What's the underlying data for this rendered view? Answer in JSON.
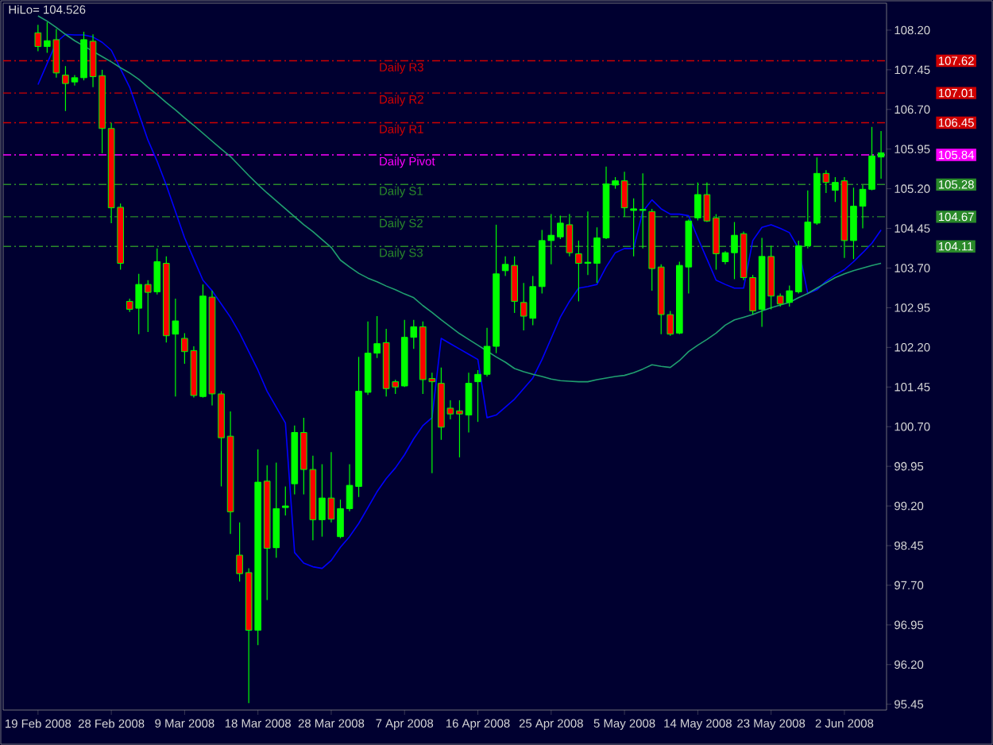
{
  "chart_data": {
    "type": "candlestick",
    "annotations": [
      "HiLo= 104.526",
      "107.62",
      "107.01",
      "106.45",
      "105.84",
      "105.28",
      "104.67",
      "104.11"
    ],
    "categories": [
      "19 Feb 2008",
      null,
      null,
      null,
      null,
      null,
      null,
      null,
      "28 Feb 2008",
      null,
      null,
      null,
      null,
      null,
      null,
      null,
      "9 Mar 2008",
      null,
      null,
      null,
      null,
      null,
      null,
      null,
      "18 Mar 2008",
      null,
      null,
      null,
      null,
      null,
      null,
      null,
      "28 Mar 2008",
      null,
      null,
      null,
      null,
      null,
      null,
      null,
      "7 Apr 2008",
      null,
      null,
      null,
      null,
      null,
      null,
      null,
      "16 Apr 2008",
      null,
      null,
      null,
      null,
      null,
      null,
      null,
      "25 Apr 2008",
      null,
      null,
      null,
      null,
      null,
      null,
      null,
      "5 May 2008",
      null,
      null,
      null,
      null,
      null,
      null,
      null,
      "14 May 2008",
      null,
      null,
      null,
      null,
      null,
      null,
      null,
      "23 May 2008",
      null,
      null,
      null,
      null,
      null,
      null,
      null,
      "2 Jun 2008",
      null,
      null,
      null,
      null
    ],
    "ohlc": [
      [
        108.15,
        108.3,
        107.8,
        107.89
      ],
      [
        107.89,
        108.35,
        107.77,
        108.0
      ],
      [
        108.02,
        108.22,
        107.3,
        107.39
      ],
      [
        107.35,
        107.52,
        106.67,
        107.19
      ],
      [
        107.22,
        107.35,
        107.15,
        107.3
      ],
      [
        107.3,
        108.17,
        107.25,
        108.02
      ],
      [
        107.99,
        108.12,
        107.12,
        107.32
      ],
      [
        107.34,
        107.45,
        105.87,
        106.34
      ],
      [
        106.34,
        106.45,
        104.55,
        104.84
      ],
      [
        104.85,
        104.92,
        103.67,
        103.79
      ],
      [
        103.07,
        103.12,
        102.87,
        102.92
      ],
      [
        102.94,
        103.59,
        102.45,
        103.39
      ],
      [
        103.39,
        103.47,
        102.49,
        103.24
      ],
      [
        103.25,
        104.07,
        103.2,
        103.82
      ],
      [
        103.79,
        103.92,
        102.29,
        102.42
      ],
      [
        102.45,
        103.12,
        101.27,
        102.7
      ],
      [
        102.37,
        102.47,
        101.89,
        102.12
      ],
      [
        102.14,
        102.22,
        101.25,
        101.29
      ],
      [
        101.27,
        103.39,
        101.25,
        103.17
      ],
      [
        103.15,
        103.27,
        101.1,
        101.32
      ],
      [
        101.32,
        101.37,
        99.57,
        100.49
      ],
      [
        100.52,
        100.99,
        98.67,
        99.09
      ],
      [
        98.27,
        98.89,
        97.77,
        97.92
      ],
      [
        97.94,
        98.02,
        95.47,
        96.85
      ],
      [
        96.85,
        100.27,
        96.57,
        99.65
      ],
      [
        99.67,
        99.97,
        97.42,
        98.4
      ],
      [
        98.41,
        100.02,
        98.22,
        99.15
      ],
      [
        99.17,
        99.57,
        99.02,
        99.2
      ],
      [
        99.62,
        100.72,
        99.42,
        100.59
      ],
      [
        100.59,
        100.87,
        99.42,
        99.89
      ],
      [
        99.89,
        100.15,
        98.55,
        98.94
      ],
      [
        98.94,
        99.99,
        98.62,
        99.35
      ],
      [
        99.35,
        100.22,
        98.89,
        98.95
      ],
      [
        98.62,
        99.32,
        98.59,
        99.15
      ],
      [
        99.15,
        99.99,
        99.1,
        99.59
      ],
      [
        99.57,
        102.02,
        99.37,
        101.37
      ],
      [
        101.35,
        102.69,
        101.3,
        102.09
      ],
      [
        102.09,
        102.79,
        102.0,
        102.27
      ],
      [
        102.29,
        102.55,
        101.27,
        101.42
      ],
      [
        101.55,
        101.59,
        101.32,
        101.45
      ],
      [
        101.47,
        102.72,
        101.45,
        102.39
      ],
      [
        102.39,
        102.72,
        102.17,
        102.59
      ],
      [
        102.59,
        102.69,
        101.32,
        101.59
      ],
      [
        101.61,
        101.72,
        99.82,
        101.55
      ],
      [
        101.52,
        101.82,
        100.45,
        100.69
      ],
      [
        101.05,
        101.2,
        100.84,
        100.94
      ],
      [
        101.0,
        101.2,
        100.12,
        100.94
      ],
      [
        100.92,
        101.72,
        100.59,
        101.52
      ],
      [
        101.55,
        101.77,
        100.79,
        101.69
      ],
      [
        101.69,
        102.57,
        101.65,
        102.22
      ],
      [
        102.22,
        104.52,
        102.09,
        103.59
      ],
      [
        103.65,
        103.92,
        103.55,
        103.77
      ],
      [
        103.75,
        103.92,
        102.85,
        103.07
      ],
      [
        103.05,
        103.42,
        102.52,
        102.79
      ],
      [
        102.75,
        103.55,
        102.62,
        103.35
      ],
      [
        103.35,
        104.42,
        103.22,
        104.22
      ],
      [
        104.22,
        104.72,
        103.77,
        104.32
      ],
      [
        104.29,
        104.69,
        104.25,
        104.55
      ],
      [
        104.52,
        104.72,
        103.92,
        103.99
      ],
      [
        103.97,
        104.22,
        103.07,
        103.79
      ],
      [
        103.79,
        104.77,
        103.57,
        103.81
      ],
      [
        103.79,
        104.47,
        103.42,
        104.27
      ],
      [
        104.27,
        105.62,
        104.25,
        105.29
      ],
      [
        105.27,
        105.42,
        105.2,
        105.35
      ],
      [
        105.35,
        105.52,
        104.67,
        104.84
      ],
      [
        104.79,
        105.02,
        103.92,
        104.82
      ],
      [
        104.79,
        105.49,
        104.07,
        104.81
      ],
      [
        104.77,
        104.82,
        103.27,
        103.69
      ],
      [
        103.72,
        103.77,
        102.45,
        102.82
      ],
      [
        102.82,
        102.89,
        102.42,
        102.45
      ],
      [
        102.47,
        103.82,
        102.45,
        103.75
      ],
      [
        103.72,
        104.62,
        103.22,
        104.59
      ],
      [
        104.65,
        105.32,
        104.6,
        105.09
      ],
      [
        105.09,
        105.32,
        104.57,
        104.59
      ],
      [
        104.65,
        104.72,
        103.67,
        103.97
      ],
      [
        103.82,
        104.02,
        103.77,
        103.99
      ],
      [
        103.99,
        104.57,
        103.49,
        104.32
      ],
      [
        104.35,
        104.39,
        103.47,
        103.52
      ],
      [
        103.52,
        103.57,
        102.82,
        102.89
      ],
      [
        102.92,
        104.27,
        102.59,
        103.92
      ],
      [
        103.92,
        104.12,
        102.92,
        103.17
      ],
      [
        103.17,
        103.22,
        102.97,
        103.02
      ],
      [
        103.05,
        103.37,
        102.97,
        103.27
      ],
      [
        103.25,
        104.22,
        103.22,
        104.12
      ],
      [
        104.12,
        105.17,
        104.07,
        104.57
      ],
      [
        104.55,
        105.79,
        104.52,
        105.49
      ],
      [
        105.49,
        105.55,
        105.12,
        105.32
      ],
      [
        105.17,
        105.42,
        104.95,
        105.32
      ],
      [
        105.35,
        105.42,
        103.89,
        104.22
      ],
      [
        104.22,
        105.22,
        103.87,
        104.87
      ],
      [
        104.87,
        105.27,
        104.45,
        105.19
      ],
      [
        105.19,
        106.37,
        105.17,
        105.82
      ],
      [
        105.8,
        106.29,
        105.39,
        105.88
      ]
    ],
    "series": [
      {
        "type": "line",
        "color": "#0000ff",
        "values": [
          107.17,
          107.57,
          107.97,
          108.12,
          108.11,
          108.11,
          108.07,
          107.97,
          107.82,
          107.47,
          107.12,
          106.62,
          106.12,
          105.72,
          105.27,
          104.77,
          104.27,
          103.87,
          103.47,
          103.27,
          103.02,
          102.77,
          102.47,
          102.12,
          101.77,
          101.37,
          101.07,
          100.77,
          98.32,
          98.12,
          98.05,
          98.02,
          98.17,
          98.42,
          98.62,
          98.87,
          99.17,
          99.47,
          99.72,
          99.92,
          100.17,
          100.47,
          100.72,
          100.87,
          102.37,
          102.27,
          102.17,
          102.07,
          101.97,
          100.87,
          100.92,
          101.07,
          101.22,
          101.42,
          101.62,
          101.97,
          102.37,
          102.77,
          103.07,
          103.32,
          103.35,
          103.39,
          103.72,
          103.99,
          104.07,
          104.07,
          104.77,
          104.99,
          104.82,
          104.72,
          104.72,
          104.69,
          104.27,
          103.87,
          103.47,
          103.39,
          103.32,
          103.32,
          104.22,
          104.47,
          104.52,
          104.45,
          104.37,
          104.07,
          103.22,
          103.29,
          103.45,
          103.57,
          103.67,
          103.82,
          103.99,
          104.17,
          104.42
        ]
      },
      {
        "type": "line",
        "color": "#20a070",
        "values": [
          108.47,
          108.37,
          108.25,
          108.12,
          108.0,
          107.9,
          107.8,
          107.7,
          107.6,
          107.49,
          107.39,
          107.27,
          107.12,
          106.98,
          106.83,
          106.69,
          106.54,
          106.4,
          106.25,
          106.1,
          105.95,
          105.81,
          105.63,
          105.45,
          105.28,
          105.12,
          104.97,
          104.82,
          104.67,
          104.52,
          104.39,
          104.24,
          104.09,
          103.85,
          103.72,
          103.6,
          103.51,
          103.44,
          103.36,
          103.29,
          103.21,
          103.14,
          102.99,
          102.86,
          102.72,
          102.59,
          102.46,
          102.35,
          102.24,
          102.13,
          102.02,
          101.92,
          101.8,
          101.74,
          101.69,
          101.65,
          101.6,
          101.57,
          101.56,
          101.55,
          101.55,
          101.59,
          101.62,
          101.65,
          101.67,
          101.72,
          101.79,
          101.87,
          101.84,
          101.82,
          101.95,
          102.12,
          102.24,
          102.35,
          102.47,
          102.62,
          102.72,
          102.77,
          102.82,
          102.89,
          102.95,
          103.0,
          103.05,
          103.14,
          103.22,
          103.32,
          103.42,
          103.52,
          103.59,
          103.65,
          103.7,
          103.75,
          103.79
        ]
      }
    ],
    "ylim": [
      95.34,
      108.71
    ],
    "yticks": [
      {
        "value": 95.45,
        "label": "95.45"
      },
      {
        "value": 96.2,
        "label": "96.20"
      },
      {
        "value": 96.95,
        "label": "96.95"
      },
      {
        "value": 97.7,
        "label": "97.70"
      },
      {
        "value": 98.45,
        "label": "98.45"
      },
      {
        "value": 99.2,
        "label": "99.20"
      },
      {
        "value": 99.95,
        "label": "99.95"
      },
      {
        "value": 100.7,
        "label": "100.70"
      },
      {
        "value": 101.45,
        "label": "101.45"
      },
      {
        "value": 102.2,
        "label": "102.20"
      },
      {
        "value": 102.95,
        "label": "102.95"
      },
      {
        "value": 103.7,
        "label": "103.70"
      },
      {
        "value": 104.45,
        "label": "104.45"
      },
      {
        "value": 105.2,
        "label": "105.20"
      },
      {
        "value": 105.95,
        "label": "105.95"
      },
      {
        "value": 106.7,
        "label": "106.70"
      },
      {
        "value": 107.45,
        "label": "107.45"
      },
      {
        "value": 108.2,
        "label": "108.20"
      }
    ],
    "ref_lines": [
      {
        "axis": "y",
        "value": 107.62,
        "label": "Daily R3",
        "color": "#d00000",
        "line_style": "dashed"
      },
      {
        "axis": "y",
        "value": 107.01,
        "label": "Daily R2",
        "color": "#d00000",
        "line_style": "dashed"
      },
      {
        "axis": "y",
        "value": 106.45,
        "label": "Daily R1",
        "color": "#d00000",
        "line_style": "dashed"
      },
      {
        "axis": "y",
        "value": 105.84,
        "label": "Daily Pivot",
        "color": "#ff00ff",
        "line_style": "dashed"
      },
      {
        "axis": "y",
        "value": 105.28,
        "label": "Daily S1",
        "color": "#2a8a2a",
        "line_style": "dashed"
      },
      {
        "axis": "y",
        "value": 104.67,
        "label": "Daily S2",
        "color": "#2a8a2a",
        "line_style": "dashed"
      },
      {
        "axis": "y",
        "value": 104.11,
        "label": "Daily S3",
        "color": "#2a8a2a",
        "line_style": "dashed"
      }
    ]
  }
}
